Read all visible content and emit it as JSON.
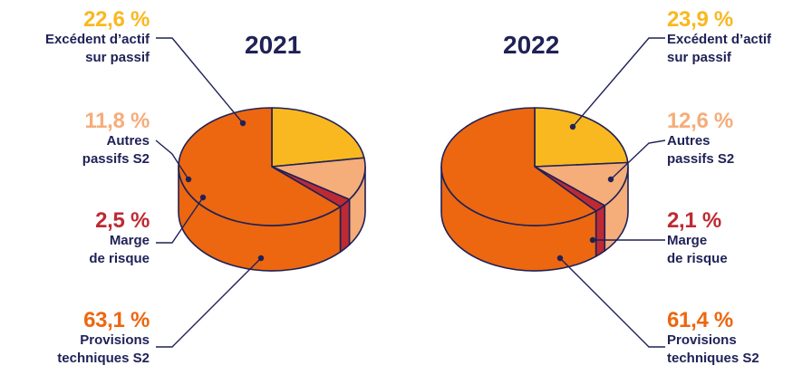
{
  "colors": {
    "excedent": "#f9b81f",
    "autres": "#f5ad7a",
    "marge": "#bd2a34",
    "provisions": "#ec6710",
    "outline": "#1f2157"
  },
  "chart_data": [
    {
      "type": "pie",
      "title": "2021",
      "slices": [
        {
          "label_line1": "Excédent d’actif",
          "label_line2": "sur passif",
          "value": 22.6,
          "value_label": "22,6 %",
          "color": "#f9b81f"
        },
        {
          "label_line1": "Autres",
          "label_line2": "passifs S2",
          "value": 11.8,
          "value_label": "11,8 %",
          "color": "#f5ad7a"
        },
        {
          "label_line1": "Marge",
          "label_line2": "de risque",
          "value": 2.5,
          "value_label": "2,5 %",
          "color": "#bd2a34"
        },
        {
          "label_line1": "Provisions",
          "label_line2": "techniques S2",
          "value": 63.1,
          "value_label": "63,1 %",
          "color": "#ec6710"
        }
      ]
    },
    {
      "type": "pie",
      "title": "2022",
      "slices": [
        {
          "label_line1": "Excédent d’actif",
          "label_line2": "sur passif",
          "value": 23.9,
          "value_label": "23,9 %",
          "color": "#f9b81f"
        },
        {
          "label_line1": "Autres",
          "label_line2": "passifs S2",
          "value": 12.6,
          "value_label": "12,6 %",
          "color": "#f5ad7a"
        },
        {
          "label_line1": "Marge",
          "label_line2": "de risque",
          "value": 2.1,
          "value_label": "2,1 %",
          "color": "#bd2a34"
        },
        {
          "label_line1": "Provisions",
          "label_line2": "techniques S2",
          "value": 61.4,
          "value_label": "61,4 %",
          "color": "#ec6710"
        }
      ]
    }
  ]
}
